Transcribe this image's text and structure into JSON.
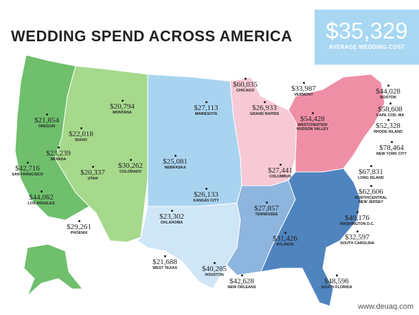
{
  "header": {
    "title": "WEDDING SPEND ACROSS AMERICA",
    "stat": {
      "value": "$35,329",
      "label": "AVERAGE WEDDING COST"
    }
  },
  "locations": [
    {
      "value": "$21,854",
      "name": "OREGON"
    },
    {
      "value": "$20,794",
      "name": "MONTANA"
    },
    {
      "value": "$22,018",
      "name": "IDAHO"
    },
    {
      "value": "$23,239",
      "name": "NEVADA"
    },
    {
      "value": "$42,716",
      "name": "SAN FRANCISCO"
    },
    {
      "value": "$20,337",
      "name": "UTAH"
    },
    {
      "value": "$30,262",
      "name": "COLORADO"
    },
    {
      "value": "$44,062",
      "name": "LOS ANGELES"
    },
    {
      "value": "$29,261",
      "name": "PHOENIX"
    },
    {
      "value": "$27,113",
      "name": "MINNESOTA"
    },
    {
      "value": "$25,081",
      "name": "NEBRASKA"
    },
    {
      "value": "$26,133",
      "name": "KANSAS CITY"
    },
    {
      "value": "$23,302",
      "name": "OKLAHOMA"
    },
    {
      "value": "$21,688",
      "name": "WEST TEXAS"
    },
    {
      "value": "$40,285",
      "name": "HOUSTON"
    },
    {
      "value": "$42,628",
      "name": "NEW ORLEANS"
    },
    {
      "value": "$60,035",
      "name": "CHICAGO"
    },
    {
      "value": "$26,933",
      "name": "GRAND RAPIDS"
    },
    {
      "value": "$27,441",
      "name": "COLUMBUS"
    },
    {
      "value": "$27,857",
      "name": "TENNESSEE"
    },
    {
      "value": "$31,426",
      "name": "ATLANTA"
    },
    {
      "value": "$48,596",
      "name": "SOUTH FLORIDA"
    },
    {
      "value": "$33,987",
      "name": "VERMONT"
    },
    {
      "value": "$44,028",
      "name": "BOSTON"
    },
    {
      "value": "$54,428",
      "name": "WESTCHESTER/ HUDSON VALLEY"
    },
    {
      "value": "$58,608",
      "name": "CAPE COD, MA"
    },
    {
      "value": "$52,328",
      "name": "RHODE ISLAND"
    },
    {
      "value": "$78,464",
      "name": "NEW YORK CITY"
    },
    {
      "value": "$67,831",
      "name": "LONG ISLAND"
    },
    {
      "value": "$62,606",
      "name": "NORTH/CENTRAL NEW JERSEY"
    },
    {
      "value": "$40,176",
      "name": "WASHINGTON D.C."
    },
    {
      "value": "$32,597",
      "name": "SOUTH CAROLINA"
    }
  ],
  "watermark": "www.deuaq.com"
}
